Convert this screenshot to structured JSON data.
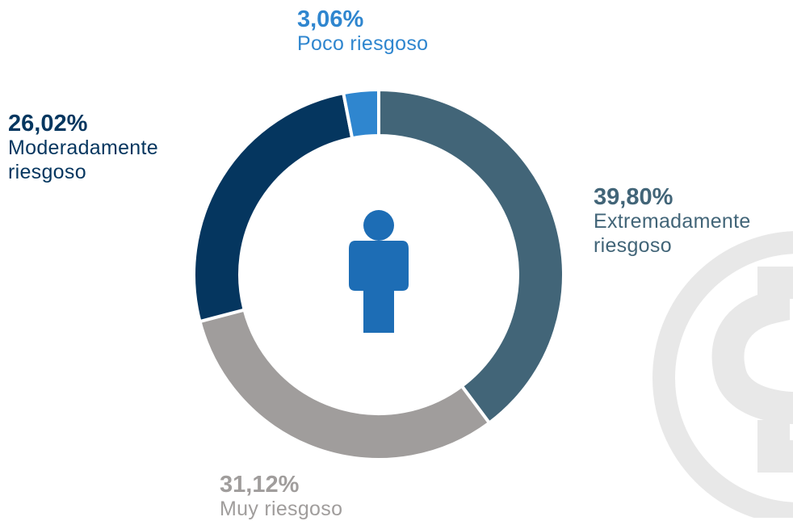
{
  "chart_data": {
    "type": "donut",
    "categories": [
      "Extremadamente riesgoso",
      "Muy riesgoso",
      "Moderadamente riesgoso",
      "Poco riesgoso"
    ],
    "values": [
      39.8,
      31.12,
      26.02,
      3.06
    ],
    "value_labels": [
      "39,80%",
      "31,12%",
      "26,02%",
      "3,06%"
    ],
    "colors": [
      "#426578",
      "#a09d9c",
      "#05365f",
      "#2f86cf"
    ]
  }
}
